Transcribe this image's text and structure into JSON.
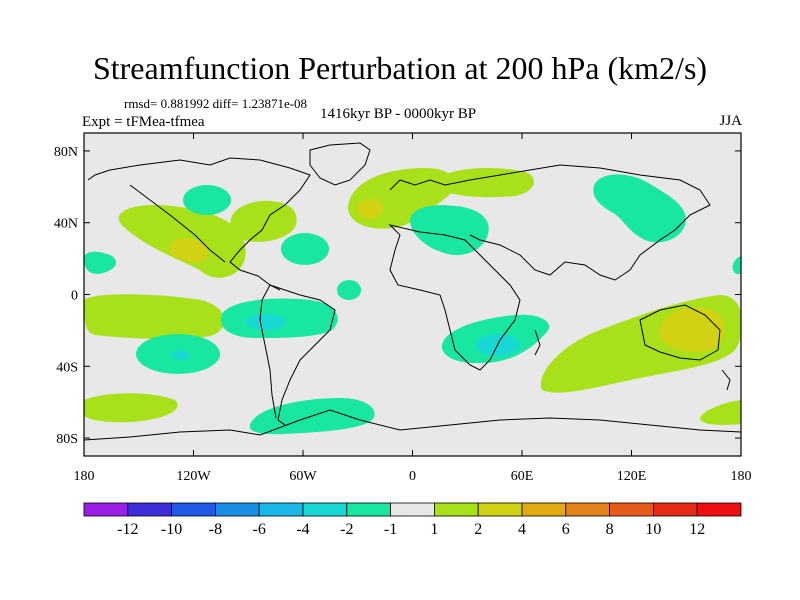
{
  "chart_data": {
    "type": "heatmap",
    "title": "Streamfunction Perturbation at 200 hPa (km2/s)",
    "stats_text": "rmsd= 0.881992 diff= 1.23871e-08",
    "experiment": "Expt = tFMea-tfmea",
    "period": "1416kyr BP - 0000kyr BP",
    "season": "JJA",
    "x_axis": {
      "range": [
        -180,
        180
      ],
      "ticks": [
        -180,
        -120,
        -60,
        0,
        60,
        120,
        180
      ],
      "tick_labels": [
        "180",
        "120W",
        "60W",
        "0",
        "60E",
        "120E",
        "180"
      ]
    },
    "y_axis": {
      "range": [
        -90,
        90
      ],
      "ticks": [
        80,
        40,
        0,
        -40,
        -80
      ],
      "tick_labels": [
        "80N",
        "40N",
        "0",
        "40S",
        "80S"
      ]
    },
    "colorbar": {
      "labels": [
        "-12",
        "-10",
        "-8",
        "-6",
        "-4",
        "-2",
        "-1",
        "1",
        "2",
        "4",
        "6",
        "8",
        "10",
        "12"
      ],
      "colors": [
        "#9a1ee6",
        "#3c2ed8",
        "#1e5ae6",
        "#1a8ee6",
        "#1ab8e6",
        "#18d8d4",
        "#19e6a0",
        "#e8e8e8",
        "#a8e01a",
        "#d2d214",
        "#e0aa10",
        "#e6821a",
        "#e65a1a",
        "#e62a14",
        "#ee1010"
      ]
    },
    "anomaly_regions": [
      {
        "lon": -127,
        "lat": 25,
        "level": "2",
        "color": "#a8e01a"
      },
      {
        "lon": -132,
        "lat": 26,
        "level": "4",
        "color": "#d2d214"
      },
      {
        "lon": -82,
        "lat": 46,
        "level": "2",
        "color": "#a8e01a"
      },
      {
        "lon": -22,
        "lat": 47,
        "level": "2",
        "color": "#a8e01a"
      },
      {
        "lon": -22,
        "lat": 45,
        "level": "4",
        "color": "#d2d214"
      },
      {
        "lon": 28,
        "lat": 62,
        "level": "2",
        "color": "#a8e01a"
      },
      {
        "lon": 30,
        "lat": 42,
        "level": "-2",
        "color": "#19e6a0"
      },
      {
        "lon": 125,
        "lat": 50,
        "level": "-2",
        "color": "#19e6a0"
      },
      {
        "lon": -117,
        "lat": 52,
        "level": "-2",
        "color": "#19e6a0"
      },
      {
        "lon": -57,
        "lat": 24,
        "level": "-2",
        "color": "#19e6a0"
      },
      {
        "lon": -170,
        "lat": 18,
        "level": "-2",
        "color": "#19e6a0"
      },
      {
        "lon": 178,
        "lat": 18,
        "level": "-2",
        "color": "#19e6a0"
      },
      {
        "lon": -115,
        "lat": -8,
        "level": "2",
        "color": "#a8e01a"
      },
      {
        "lon": -70,
        "lat": -12,
        "level": "-2",
        "color": "#19e6a0"
      },
      {
        "lon": -70,
        "lat": -12,
        "level": "-4",
        "color": "#18d8d4"
      },
      {
        "lon": -34,
        "lat": 3,
        "level": "-2",
        "color": "#19e6a0"
      },
      {
        "lon": -130,
        "lat": -34,
        "level": "-2",
        "color": "#19e6a0"
      },
      {
        "lon": -130,
        "lat": -33,
        "level": "-4",
        "color": "#18d8d4"
      },
      {
        "lon": 45,
        "lat": -26,
        "level": "-2",
        "color": "#19e6a0"
      },
      {
        "lon": 40,
        "lat": -27,
        "level": "-4",
        "color": "#18d8d4"
      },
      {
        "lon": 118,
        "lat": -32,
        "level": "2",
        "color": "#a8e01a"
      },
      {
        "lon": 155,
        "lat": -20,
        "level": "4",
        "color": "#d2d214"
      },
      {
        "lon": -155,
        "lat": -62,
        "level": "2",
        "color": "#a8e01a"
      },
      {
        "lon": -60,
        "lat": -63,
        "level": "-2",
        "color": "#19e6a0"
      },
      {
        "lon": 172,
        "lat": -68,
        "level": "2",
        "color": "#a8e01a"
      }
    ]
  }
}
